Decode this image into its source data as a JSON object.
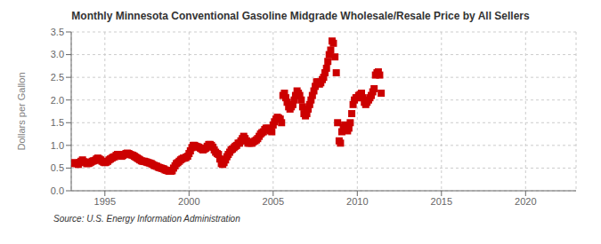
{
  "chart_data": {
    "type": "scatter",
    "title": "Monthly Minnesota Conventional Gasoline Midgrade Wholesale/Resale Price by All Sellers",
    "ylabel": "Dollars per Gallon",
    "annotations": [
      "Source: U.S. Energy Information Administration"
    ],
    "color": "#cc0000",
    "marker": "square",
    "grid": true,
    "xlim": [
      1993.0,
      2023.0
    ],
    "ylim": [
      0.0,
      3.5
    ],
    "xticks": [
      1995,
      2000,
      2005,
      2010,
      2015,
      2020
    ],
    "yticks": [
      {
        "value": 0.0,
        "label": "0.0"
      },
      0.5,
      {
        "value": 1.0,
        "label": "1.0"
      },
      1.5,
      {
        "value": 2.0,
        "label": "2.0"
      },
      2.5,
      {
        "value": 3.0,
        "label": "3.0"
      },
      3.5
    ],
    "x": [
      1993.08,
      1993.17,
      1993.25,
      1993.33,
      1993.42,
      1993.5,
      1993.58,
      1993.67,
      1993.75,
      1993.83,
      1993.92,
      1994.0,
      1994.08,
      1994.17,
      1994.25,
      1994.33,
      1994.42,
      1994.5,
      1994.58,
      1994.67,
      1994.75,
      1994.83,
      1994.92,
      1995.0,
      1995.08,
      1995.17,
      1995.25,
      1995.33,
      1995.42,
      1995.5,
      1995.58,
      1995.67,
      1995.75,
      1995.83,
      1995.92,
      1996.0,
      1996.08,
      1996.17,
      1996.25,
      1996.33,
      1996.42,
      1996.5,
      1996.58,
      1996.67,
      1996.75,
      1996.83,
      1996.92,
      1997.0,
      1997.08,
      1997.17,
      1997.25,
      1997.33,
      1997.42,
      1997.5,
      1997.58,
      1997.67,
      1997.75,
      1997.83,
      1997.92,
      1998.0,
      1998.08,
      1998.17,
      1998.25,
      1998.33,
      1998.42,
      1998.5,
      1998.58,
      1998.67,
      1998.75,
      1998.83,
      1998.92,
      1999.0,
      1999.08,
      1999.17,
      1999.25,
      1999.33,
      1999.42,
      1999.5,
      1999.58,
      1999.67,
      1999.75,
      1999.83,
      1999.92,
      2000.0,
      2000.08,
      2000.17,
      2000.25,
      2000.33,
      2000.42,
      2000.5,
      2000.58,
      2000.67,
      2000.75,
      2000.83,
      2000.92,
      2001.0,
      2001.08,
      2001.17,
      2001.25,
      2001.33,
      2001.42,
      2001.5,
      2001.58,
      2001.67,
      2001.75,
      2001.83,
      2001.92,
      2002.0,
      2002.08,
      2002.17,
      2002.25,
      2002.33,
      2002.42,
      2002.5,
      2002.58,
      2002.67,
      2002.75,
      2002.83,
      2002.92,
      2003.0,
      2003.08,
      2003.17,
      2003.25,
      2003.33,
      2003.42,
      2003.5,
      2003.58,
      2003.67,
      2003.75,
      2003.83,
      2003.92,
      2004.0,
      2004.08,
      2004.17,
      2004.25,
      2004.33,
      2004.42,
      2004.5,
      2004.58,
      2004.67,
      2004.75,
      2004.83,
      2004.92,
      2005.0,
      2005.08,
      2005.17,
      2005.25,
      2005.33,
      2005.42,
      2005.5,
      2005.58,
      2005.67,
      2005.75,
      2005.83,
      2005.92,
      2006.0,
      2006.08,
      2006.17,
      2006.25,
      2006.33,
      2006.42,
      2006.5,
      2006.58,
      2006.67,
      2006.75,
      2006.83,
      2006.92,
      2007.0,
      2007.08,
      2007.17,
      2007.25,
      2007.33,
      2007.42,
      2007.5,
      2007.58,
      2007.67,
      2007.75,
      2007.83,
      2007.92,
      2008.0,
      2008.08,
      2008.17,
      2008.25,
      2008.33,
      2008.42,
      2008.5,
      2008.58,
      2008.67,
      2008.75,
      2008.83,
      2008.92,
      2009.0,
      2009.08,
      2009.17,
      2009.25,
      2009.33,
      2009.42,
      2009.5,
      2009.58,
      2009.67,
      2009.75,
      2009.83,
      2009.92,
      2010.0,
      2010.08,
      2010.17,
      2010.25,
      2010.33,
      2010.42,
      2010.5,
      2010.58,
      2010.67,
      2010.75,
      2010.83,
      2010.92,
      2011.0,
      2011.08,
      2011.17,
      2011.25,
      2011.33,
      2011.42
    ],
    "values": [
      0.6,
      0.62,
      0.61,
      0.6,
      0.58,
      0.62,
      0.65,
      0.68,
      0.64,
      0.63,
      0.6,
      0.6,
      0.61,
      0.63,
      0.65,
      0.66,
      0.67,
      0.7,
      0.72,
      0.7,
      0.68,
      0.65,
      0.63,
      0.62,
      0.63,
      0.65,
      0.68,
      0.7,
      0.72,
      0.74,
      0.75,
      0.78,
      0.8,
      0.8,
      0.78,
      0.76,
      0.78,
      0.8,
      0.82,
      0.83,
      0.82,
      0.8,
      0.79,
      0.78,
      0.76,
      0.74,
      0.72,
      0.7,
      0.68,
      0.66,
      0.65,
      0.65,
      0.64,
      0.63,
      0.62,
      0.61,
      0.6,
      0.58,
      0.56,
      0.55,
      0.54,
      0.52,
      0.51,
      0.5,
      0.49,
      0.48,
      0.46,
      0.45,
      0.44,
      0.43,
      0.43,
      0.44,
      0.5,
      0.55,
      0.6,
      0.62,
      0.65,
      0.68,
      0.7,
      0.72,
      0.72,
      0.74,
      0.76,
      0.82,
      0.88,
      0.95,
      1.0,
      1.0,
      0.98,
      0.97,
      0.96,
      0.94,
      0.92,
      0.9,
      0.92,
      0.94,
      0.98,
      1.02,
      1.02,
      1.0,
      0.96,
      0.9,
      0.85,
      0.82,
      0.8,
      0.7,
      0.6,
      0.58,
      0.62,
      0.68,
      0.75,
      0.8,
      0.85,
      0.9,
      0.92,
      0.95,
      0.98,
      1.0,
      1.05,
      1.05,
      1.1,
      1.15,
      1.2,
      1.15,
      1.1,
      1.05,
      1.05,
      1.05,
      1.05,
      1.08,
      1.1,
      1.12,
      1.15,
      1.2,
      1.25,
      1.28,
      1.3,
      1.35,
      1.38,
      1.38,
      1.35,
      1.32,
      1.3,
      1.45,
      1.52,
      1.58,
      1.62,
      1.6,
      1.58,
      1.5,
      2.1,
      2.15,
      2.05,
      1.95,
      1.85,
      1.8,
      1.85,
      1.9,
      2.0,
      2.1,
      2.2,
      2.15,
      2.1,
      2.0,
      1.85,
      1.7,
      1.65,
      1.7,
      1.8,
      1.9,
      2.0,
      2.1,
      2.2,
      2.3,
      2.4,
      2.4,
      2.35,
      2.38,
      2.45,
      2.5,
      2.6,
      2.7,
      2.85,
      3.0,
      3.1,
      3.3,
      3.25,
      2.95,
      2.6,
      1.5,
      1.1,
      1.05,
      1.3,
      1.4,
      1.45,
      1.35,
      1.32,
      1.38,
      1.5,
      1.7,
      1.9,
      2.0,
      2.05,
      2.05,
      2.1,
      2.12,
      2.15,
      2.05,
      1.95,
      1.9,
      1.95,
      2.0,
      2.05,
      2.1,
      2.18,
      2.25,
      2.55,
      2.6,
      2.62,
      2.55,
      2.15
    ]
  }
}
